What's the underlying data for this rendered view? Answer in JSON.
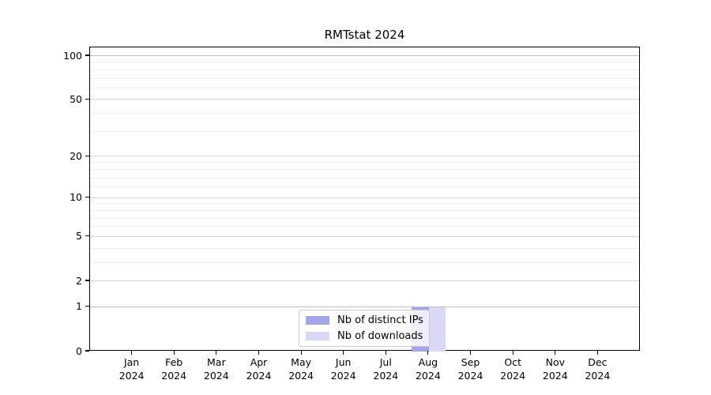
{
  "chart_data": {
    "type": "bar",
    "title": "RMTstat 2024",
    "categories": [
      "Jan",
      "Feb",
      "Mar",
      "Apr",
      "May",
      "Jun",
      "Jul",
      "Aug",
      "Sep",
      "Oct",
      "Nov",
      "Dec"
    ],
    "x_year_label": "2024",
    "series": [
      {
        "name": "Nb of distinct IPs",
        "color": "#a4a4ec",
        "values": [
          0,
          0,
          0,
          0,
          0,
          0,
          0,
          1,
          0,
          0,
          0,
          0
        ]
      },
      {
        "name": "Nb of downloads",
        "color": "#d9d9f7",
        "values": [
          0,
          0,
          0,
          0,
          0,
          0,
          0,
          1,
          0,
          0,
          0,
          0
        ]
      }
    ],
    "xlabel": "",
    "ylabel": "",
    "y_scale": "log1p",
    "ylim": [
      0,
      115
    ],
    "y_ticks": [
      0,
      1,
      2,
      5,
      10,
      20,
      50,
      100
    ],
    "y_minor_ticks": [
      3,
      4,
      6,
      7,
      8,
      9,
      12,
      14,
      16,
      18,
      30,
      40,
      60,
      70,
      80,
      90
    ],
    "grid": "horizontal",
    "legend_position": "lower center"
  }
}
